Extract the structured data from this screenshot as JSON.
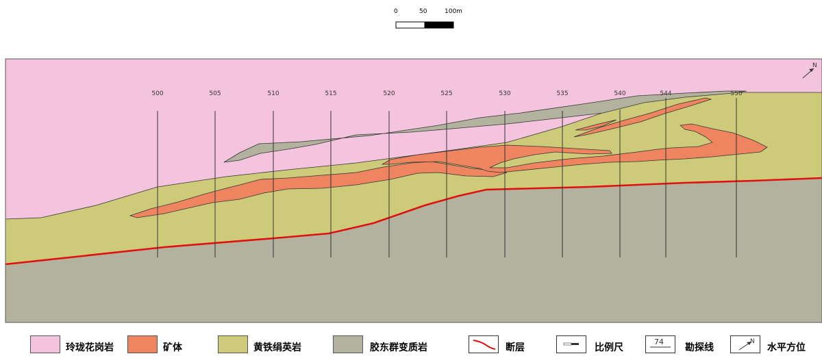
{
  "scale_bar": {
    "labels": [
      "0",
      "50",
      "100m"
    ]
  },
  "colors": {
    "granite": "#f4c3dd",
    "ore_body": "#ee8560",
    "pyrite_sericite_rock": "#cdcb79",
    "jiaodong_metamorphic": "#b3b29e",
    "fault": "#e01010",
    "line": "#333333"
  },
  "exploration_lines": [
    "500",
    "505",
    "510",
    "515",
    "520",
    "525",
    "530",
    "535",
    "540",
    "544",
    "550"
  ],
  "north_symbol": "N",
  "legend": [
    {
      "key": "granite",
      "label": "玲珑花岗岩",
      "icon": "pink-swatch"
    },
    {
      "key": "ore",
      "label": "矿体",
      "icon": "orange-swatch"
    },
    {
      "key": "pyrite",
      "label": "黄铁绢英岩",
      "icon": "olive-swatch"
    },
    {
      "key": "metamorphic",
      "label": "胶东群变质岩",
      "icon": "gray-swatch"
    },
    {
      "key": "fault",
      "label": "断层",
      "icon": "fault-line-icon"
    },
    {
      "key": "scale",
      "label": "比例尺",
      "icon": "scale-bar-icon"
    },
    {
      "key": "line",
      "label": "勘探线",
      "icon": "exploration-line-icon",
      "icon_text": "74"
    },
    {
      "key": "north",
      "label": "水平方位",
      "icon": "north-arrow-icon",
      "icon_text": "N"
    }
  ]
}
